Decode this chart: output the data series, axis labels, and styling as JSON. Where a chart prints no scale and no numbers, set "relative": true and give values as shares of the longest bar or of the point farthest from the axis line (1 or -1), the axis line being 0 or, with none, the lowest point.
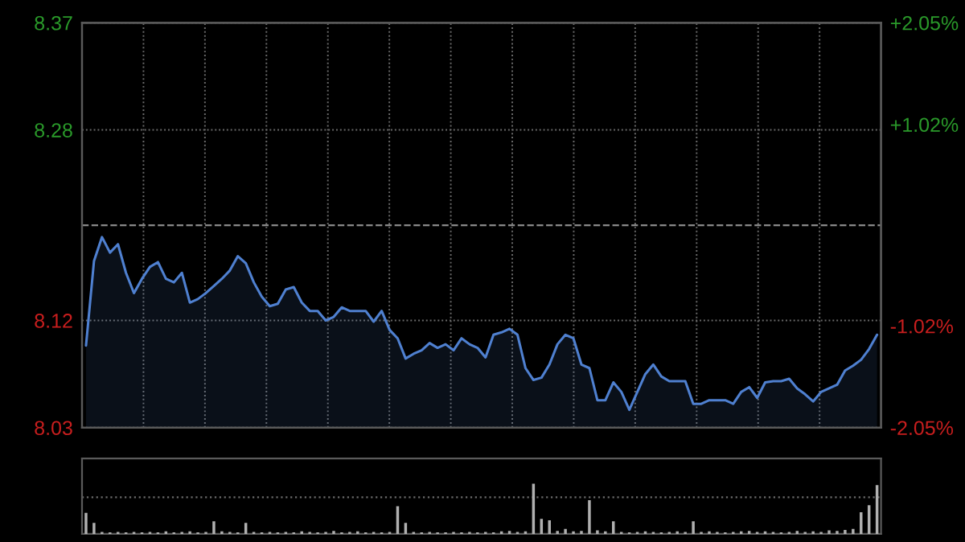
{
  "chart_data": [
    {
      "type": "area",
      "categories": [
        null,
        null,
        null,
        null,
        null,
        null,
        null,
        null,
        null,
        null,
        null,
        null,
        null,
        null,
        null,
        null,
        null,
        null,
        null,
        null,
        null,
        null,
        null,
        null,
        null,
        null,
        null,
        null,
        null,
        null,
        null,
        null,
        null,
        null,
        null,
        null,
        null,
        null,
        null,
        null,
        null,
        null,
        null,
        null,
        null,
        null,
        null,
        null,
        null,
        null,
        null,
        null,
        null,
        null,
        null,
        null,
        null,
        null,
        null,
        null,
        null,
        null,
        null,
        null,
        null,
        null,
        null,
        null,
        null,
        null,
        null,
        null,
        null,
        null,
        null,
        null,
        null,
        null,
        null,
        null,
        null,
        null,
        null,
        null,
        null,
        null,
        null,
        null,
        null,
        null,
        null,
        null,
        null,
        null,
        null,
        null,
        null,
        null,
        null,
        null
      ],
      "series": [
        {
          "color": "#4f80d0",
          "values": [
            8.099,
            8.17,
            8.19,
            8.177,
            8.184,
            8.16,
            8.143,
            8.155,
            8.165,
            8.169,
            8.155,
            8.152,
            8.16,
            8.135,
            8.138,
            8.143,
            8.149,
            8.155,
            8.162,
            8.174,
            8.168,
            8.152,
            8.14,
            8.132,
            8.134,
            8.146,
            8.148,
            8.135,
            8.128,
            8.128,
            8.12,
            8.123,
            8.131,
            8.128,
            8.128,
            8.128,
            8.119,
            8.128,
            8.112,
            8.105,
            8.088,
            8.092,
            8.095,
            8.101,
            8.097,
            8.1,
            8.095,
            8.105,
            8.1,
            8.097,
            8.089,
            8.108,
            8.11,
            8.113,
            8.108,
            8.08,
            8.07,
            8.072,
            8.083,
            8.1,
            8.108,
            8.105,
            8.083,
            8.08,
            8.053,
            8.053,
            8.068,
            8.06,
            8.045,
            8.06,
            8.075,
            8.083,
            8.073,
            8.069,
            8.069,
            8.069,
            8.05,
            8.05,
            8.053,
            8.053,
            8.053,
            8.05,
            8.06,
            8.064,
            8.055,
            8.068,
            8.069,
            8.069,
            8.071,
            8.063,
            8.058,
            8.052,
            8.06,
            8.063,
            8.066,
            8.078,
            8.082,
            8.087,
            8.096,
            8.108
          ]
        }
      ],
      "ylim": [
        8.03,
        8.37
      ],
      "yticks": [
        8.03,
        8.12,
        8.28,
        8.37
      ],
      "y2lim": [
        -2.05,
        2.05
      ],
      "y2ticks": [
        {
          "value": -2.05,
          "label": "-2.05%"
        },
        {
          "value": -1.02,
          "label": "-1.02%"
        },
        {
          "value": 1.02,
          "label": "+1.02%"
        },
        {
          "value": 2.05,
          "label": "+2.05%"
        }
      ],
      "ref_lines": [
        {
          "axis": "y",
          "value": 8.2,
          "color": "#888888",
          "line_style": "dashed"
        }
      ],
      "grid": true,
      "tick_labels": "y"
    },
    {
      "type": "bar",
      "relative": true,
      "color": "#b0b0b0",
      "ref_lines": [
        {
          "axis": "y",
          "value": 0.73,
          "color": "#6a6a6a",
          "line_style": "dotted"
        }
      ],
      "categories": [
        null,
        null,
        null,
        null,
        null,
        null,
        null,
        null,
        null,
        null,
        null,
        null,
        null,
        null,
        null,
        null,
        null,
        null,
        null,
        null,
        null,
        null,
        null,
        null,
        null,
        null,
        null,
        null,
        null,
        null,
        null,
        null,
        null,
        null,
        null,
        null,
        null,
        null,
        null,
        null,
        null,
        null,
        null,
        null,
        null,
        null,
        null,
        null,
        null,
        null,
        null,
        null,
        null,
        null,
        null,
        null,
        null,
        null,
        null,
        null,
        null,
        null,
        null,
        null,
        null,
        null,
        null,
        null,
        null,
        null,
        null,
        null,
        null,
        null,
        null,
        null,
        null,
        null,
        null,
        null,
        null,
        null,
        null,
        null,
        null,
        null,
        null,
        null,
        null,
        null,
        null,
        null,
        null,
        null,
        null,
        null,
        null,
        null,
        null,
        null
      ],
      "values": [
        0.42,
        0.22,
        0.04,
        0.03,
        0.04,
        0.03,
        0.04,
        0.03,
        0.04,
        0.03,
        0.05,
        0.03,
        0.04,
        0.05,
        0.03,
        0.04,
        0.25,
        0.05,
        0.04,
        0.03,
        0.22,
        0.04,
        0.03,
        0.04,
        0.03,
        0.04,
        0.03,
        0.05,
        0.04,
        0.03,
        0.04,
        0.06,
        0.03,
        0.04,
        0.05,
        0.03,
        0.04,
        0.03,
        0.04,
        0.55,
        0.22,
        0.04,
        0.03,
        0.04,
        0.03,
        0.03,
        0.04,
        0.03,
        0.04,
        0.03,
        0.04,
        0.03,
        0.05,
        0.06,
        0.04,
        0.05,
        1.0,
        0.3,
        0.27,
        0.06,
        0.1,
        0.05,
        0.06,
        0.67,
        0.07,
        0.05,
        0.25,
        0.04,
        0.03,
        0.04,
        0.05,
        0.04,
        0.03,
        0.04,
        0.05,
        0.04,
        0.25,
        0.04,
        0.05,
        0.04,
        0.03,
        0.04,
        0.05,
        0.06,
        0.04,
        0.05,
        0.04,
        0.03,
        0.04,
        0.06,
        0.04,
        0.05,
        0.04,
        0.07,
        0.06,
        0.08,
        0.1,
        0.43,
        0.57,
        0.97
      ]
    }
  ]
}
